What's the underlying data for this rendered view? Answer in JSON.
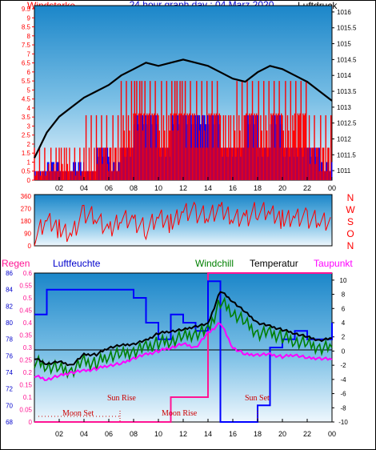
{
  "header": {
    "title": "24 hour graph day : 04 Marz 2020",
    "left_label": "Windstarke",
    "right_label": "Luftdruck"
  },
  "time_ticks": [
    "02",
    "04",
    "06",
    "08",
    "10",
    "12",
    "14",
    "16",
    "18",
    "20",
    "22",
    "00"
  ],
  "colors": {
    "title": "#0000cc",
    "wind_speed": "#ff0000",
    "wind_gust": "#0000ff",
    "pressure": "#000000",
    "direction": "#ff0000",
    "humidity": "#0000ff",
    "windchill": "#008000",
    "temperature": "#000000",
    "dewpoint": "#ff00ff",
    "rain": "#ff1493",
    "astro": "#cc0000"
  },
  "chart_data": [
    {
      "type": "bar",
      "name": "wind-pressure",
      "left_axis": {
        "label": "Windstarke",
        "ticks": [
          "0",
          "0.5",
          "1",
          "1.5",
          "2",
          "2.5",
          "3",
          "3.5",
          "4",
          "4.5",
          "5",
          "5.5",
          "6",
          "6.5",
          "7",
          "7.5",
          "8",
          "8.5",
          "9",
          "9.5"
        ],
        "ylim": [
          0,
          9.5
        ]
      },
      "right_axis": {
        "label": "Luftdruck",
        "ticks": [
          "1011",
          "1011.5",
          "1012",
          "1012.5",
          "1013",
          "1013.5",
          "1014",
          "1014.5",
          "1015",
          "1015.5",
          "1016"
        ],
        "ylim": [
          1010.7,
          1016.2
        ]
      },
      "x": [
        "00",
        "01",
        "02",
        "03",
        "04",
        "05",
        "06",
        "07",
        "08",
        "09",
        "10",
        "11",
        "12",
        "13",
        "14",
        "15",
        "16",
        "17",
        "18",
        "19",
        "20",
        "21",
        "22",
        "23",
        "00"
      ],
      "series": [
        {
          "name": "Windstarke",
          "values": [
            1.8,
            0.5,
            1.8,
            1.8,
            0.5,
            3.6,
            1.8,
            3.6,
            5.5,
            5.5,
            3.6,
            5.5,
            5.5,
            3.6,
            5.5,
            3.6,
            3.6,
            5.5,
            3.6,
            5.5,
            3.6,
            5.5,
            3.6,
            1.8,
            3.6
          ]
        },
        {
          "name": "Boe",
          "values": [
            0.5,
            1.0,
            0.5,
            1.0,
            0.5,
            1.8,
            1.0,
            1.8,
            3.6,
            3.6,
            1.8,
            3.6,
            3.6,
            3.6,
            3.6,
            1.8,
            1.8,
            3.6,
            1.8,
            3.6,
            1.8,
            1.8,
            1.8,
            1.0,
            1.8
          ]
        },
        {
          "name": "Luftdruck",
          "values": [
            1011.4,
            1012.2,
            1012.7,
            1013.0,
            1013.3,
            1013.5,
            1013.7,
            1014.0,
            1014.2,
            1014.4,
            1014.3,
            1014.4,
            1014.5,
            1014.4,
            1014.3,
            1014.1,
            1013.9,
            1013.8,
            1014.1,
            1014.3,
            1014.2,
            1014.0,
            1013.8,
            1013.5,
            1013.2
          ]
        }
      ]
    },
    {
      "type": "line",
      "name": "wind-direction",
      "left_axis": {
        "ticks": [
          "0",
          "90",
          "180",
          "270",
          "360"
        ],
        "ylim": [
          0,
          360
        ]
      },
      "right_axis": {
        "labels": [
          "N",
          "W",
          "S",
          "O",
          "N"
        ]
      },
      "x": [
        "00",
        "01",
        "02",
        "03",
        "04",
        "05",
        "06",
        "07",
        "08",
        "09",
        "10",
        "11",
        "12",
        "13",
        "14",
        "15",
        "16",
        "17",
        "18",
        "19",
        "20",
        "21",
        "22",
        "23",
        "00"
      ],
      "series": [
        {
          "values": [
            60,
            180,
            120,
            90,
            240,
            200,
            90,
            220,
            180,
            120,
            200,
            160,
            260,
            240,
            210,
            250,
            220,
            200,
            260,
            230,
            190,
            220,
            200,
            180,
            150
          ]
        }
      ]
    },
    {
      "type": "line",
      "name": "temperature-humidity",
      "axes": {
        "regen": {
          "label": "Regen",
          "ticks": [
            "68",
            "70",
            "72",
            "74",
            "76",
            "78",
            "80",
            "82",
            "84",
            "86"
          ],
          "ylim": [
            68,
            86
          ]
        },
        "luftfeuchte": {
          "label": "Luftfeuchte",
          "ticks": [
            "0",
            "0.05",
            "0.1",
            "0.15",
            "0.2",
            "0.25",
            "0.3",
            "0.35",
            "0.4",
            "0.45",
            "0.5",
            "0.55",
            "0.6"
          ],
          "ylim": [
            0,
            0.6
          ]
        },
        "temperatur": {
          "ticks": [
            "10",
            "8",
            "6",
            "4",
            "2",
            "0",
            "-2",
            "-4",
            "-6",
            "-8",
            "-10"
          ],
          "ylim": [
            -10,
            11
          ]
        }
      },
      "legend": [
        "Windchill",
        "Temperatur",
        "Taupunkt"
      ],
      "x": [
        "00",
        "01",
        "02",
        "03",
        "04",
        "05",
        "06",
        "07",
        "08",
        "09",
        "10",
        "11",
        "12",
        "13",
        "14",
        "15",
        "16",
        "17",
        "18",
        "19",
        "20",
        "21",
        "22",
        "23",
        "00"
      ],
      "series": [
        {
          "name": "Luftfeuchte",
          "values": [
            81,
            84,
            84,
            84,
            84,
            84,
            84,
            84,
            83,
            80,
            78,
            81,
            80,
            79,
            85,
            68,
            68,
            68,
            70,
            77,
            78,
            79,
            78,
            78,
            80
          ]
        },
        {
          "name": "Temperatur",
          "values": [
            -1.0,
            -1.8,
            -1.5,
            -2.0,
            -0.5,
            -0.5,
            0.5,
            0.8,
            1.0,
            1.5,
            2.5,
            2.8,
            3.0,
            3.5,
            3.8,
            8.5,
            7.0,
            5.5,
            4.0,
            3.5,
            3.0,
            2.5,
            2.0,
            1.5,
            1.8
          ]
        },
        {
          "name": "Windchill",
          "values": [
            -1.5,
            -2.0,
            -2.5,
            -2.8,
            -1.5,
            -1.8,
            -0.5,
            -0.5,
            0.0,
            0.5,
            1.2,
            1.5,
            2.0,
            2.5,
            2.8,
            7.0,
            5.5,
            4.0,
            2.5,
            2.5,
            2.0,
            1.5,
            1.0,
            0.5,
            0.5
          ]
        },
        {
          "name": "Taupunkt",
          "values": [
            -3.5,
            -4.0,
            -3.5,
            -3.0,
            -2.8,
            -2.5,
            -2.0,
            -1.8,
            -1.0,
            -0.5,
            0.0,
            0.5,
            1.0,
            0.5,
            2.5,
            4.0,
            0.5,
            -0.5,
            -0.5,
            -0.5,
            -0.8,
            -0.5,
            -1.0,
            -1.0,
            -1.2
          ]
        },
        {
          "name": "Regen",
          "values": [
            0,
            0,
            0,
            0,
            0,
            0,
            0,
            0,
            0,
            0,
            0,
            0.1,
            0.1,
            0.1,
            0.6,
            0.6,
            0.6,
            0.6,
            0.6,
            0.6,
            0.6,
            0.6,
            0.6,
            0.6,
            0.6
          ]
        }
      ],
      "annotations": [
        "Moon Set",
        "Sun Rise",
        "Moon Rise",
        "Sun Set"
      ]
    }
  ],
  "panel3_labels": {
    "regen": "Regen",
    "luftfeuchte": "Luftfeuchte",
    "windchill": "Windchill",
    "temperatur": "Temperatur",
    "taupunkt": "Taupunkt"
  },
  "astro": {
    "moon_set_1": "Moon Set",
    "sun_rise": "Sun Rise",
    "moon_rise": "Moon Rise",
    "sun_set": "Sun Set"
  }
}
